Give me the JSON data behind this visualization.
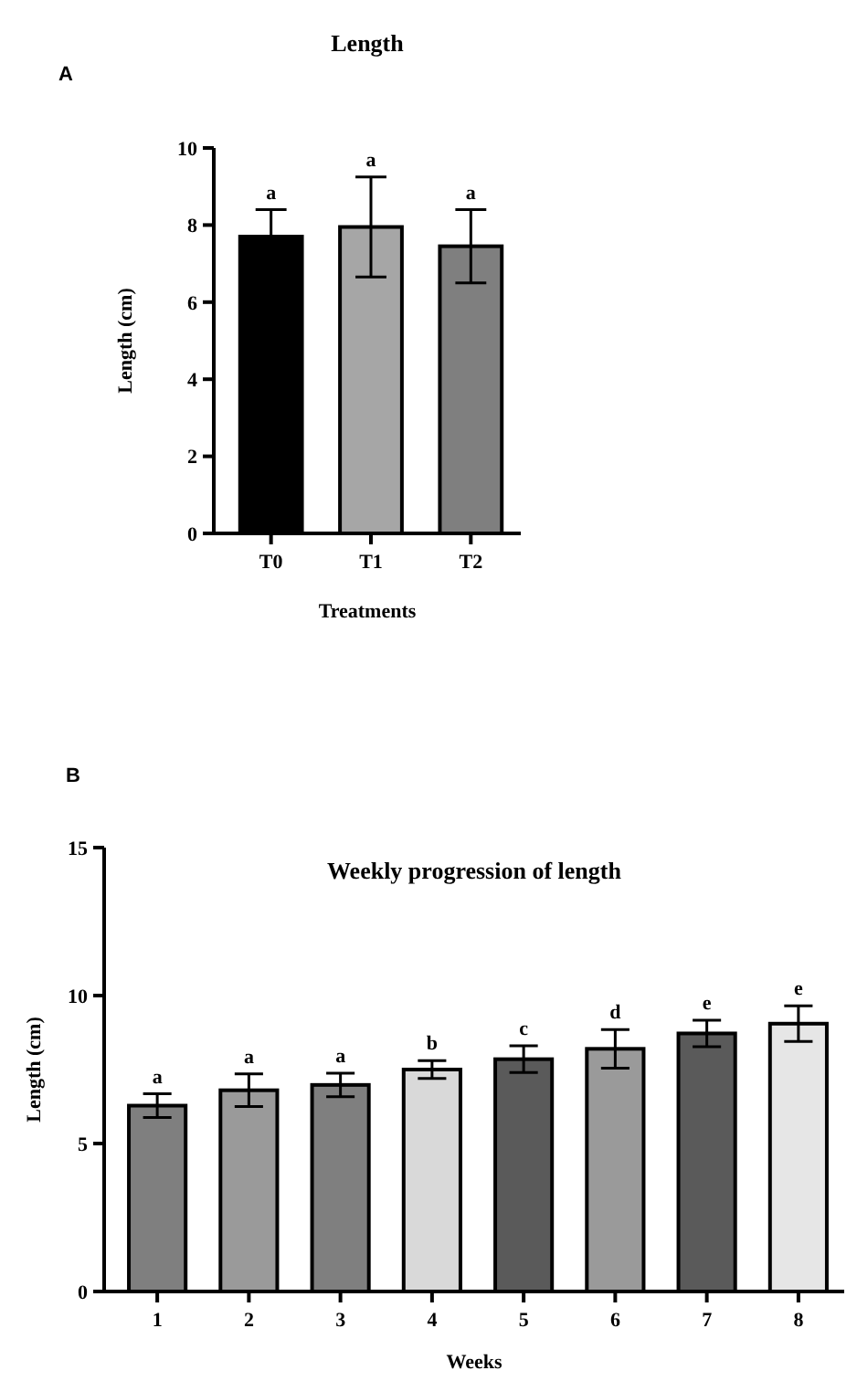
{
  "chart_data": [
    {
      "type": "bar",
      "title": "Length",
      "xlabel": "Treatments",
      "ylabel": "Length (cm)",
      "categories": [
        "T0",
        "T1",
        "T2"
      ],
      "values": [
        7.7,
        7.95,
        7.45
      ],
      "colors": [
        "#000000",
        "#a6a6a6",
        "#7f7f7f"
      ],
      "errors": [
        0.7,
        1.3,
        0.95
      ],
      "ylim": [
        0,
        10
      ],
      "yticks": [
        0,
        2,
        4,
        6,
        8,
        10
      ],
      "grid": false,
      "annotations": [
        "A",
        "a",
        "a",
        "a"
      ]
    },
    {
      "type": "bar",
      "title": "Weekly progression of length",
      "xlabel": "Weeks",
      "ylabel": "Length (cm)",
      "categories": [
        "1",
        "2",
        "3",
        "4",
        "5",
        "6",
        "7",
        "8"
      ],
      "values": [
        6.28,
        6.8,
        6.98,
        7.5,
        7.85,
        8.2,
        8.72,
        9.05
      ],
      "colors": [
        "#7f7f7f",
        "#9a9a9a",
        "#7f7f7f",
        "#d9d9d9",
        "#5a5a5a",
        "#9a9a9a",
        "#5a5a5a",
        "#e6e6e6"
      ],
      "errors": [
        0.4,
        0.55,
        0.4,
        0.3,
        0.45,
        0.65,
        0.45,
        0.6
      ],
      "ylim": [
        0,
        15
      ],
      "yticks": [
        0,
        5,
        10,
        15
      ],
      "grid": false,
      "annotations": [
        "B",
        "a",
        "a",
        "a",
        "b",
        "c",
        "d",
        "e",
        "e"
      ]
    }
  ]
}
